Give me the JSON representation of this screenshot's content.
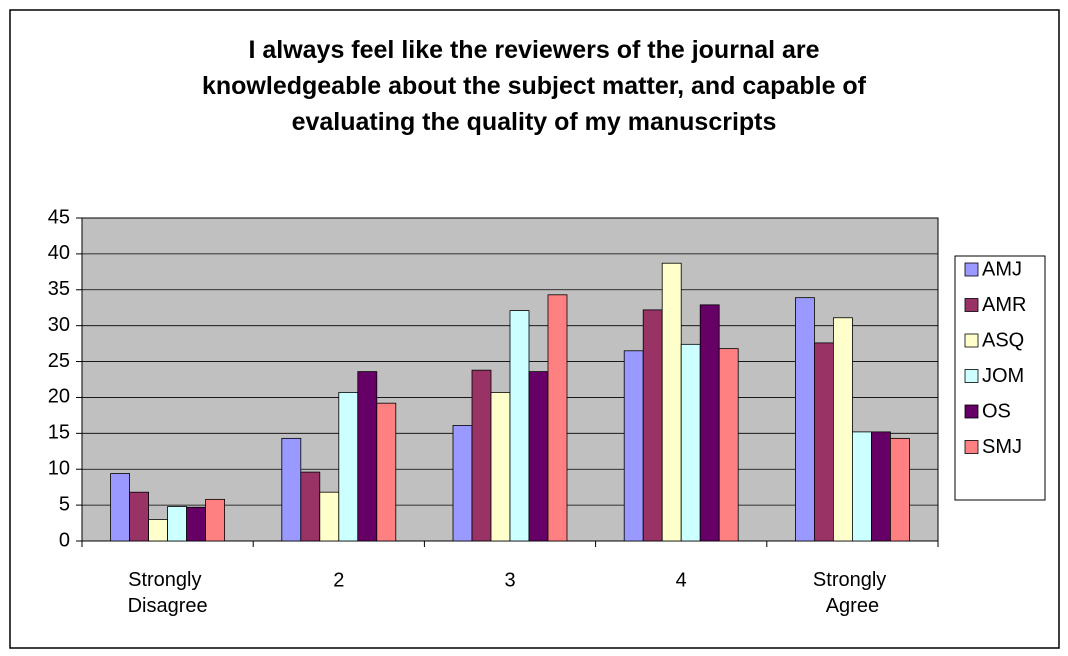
{
  "chart_data": {
    "type": "bar",
    "title": "I always feel like the reviewers of the journal are knowledgeable about the subject matter, and capable of evaluating the quality of my manuscripts",
    "categories": [
      "Strongly Disagree",
      "2",
      "3",
      "4",
      "Strongly Agree"
    ],
    "series": [
      {
        "name": "AMJ",
        "color": "#9999ff",
        "values": [
          9.4,
          14.3,
          16.1,
          26.5,
          33.9
        ]
      },
      {
        "name": "AMR",
        "color": "#993366",
        "values": [
          6.8,
          9.6,
          23.8,
          32.2,
          27.6
        ]
      },
      {
        "name": "ASQ",
        "color": "#ffffcc",
        "values": [
          3.0,
          6.8,
          20.7,
          38.7,
          31.1
        ]
      },
      {
        "name": "JOM",
        "color": "#ccffff",
        "values": [
          4.8,
          20.7,
          32.1,
          27.4,
          15.2
        ]
      },
      {
        "name": "OS",
        "color": "#660066",
        "values": [
          4.7,
          23.6,
          23.6,
          32.9,
          15.2
        ]
      },
      {
        "name": "SMJ",
        "color": "#ff8080",
        "values": [
          5.8,
          19.2,
          34.3,
          26.8,
          14.3
        ]
      }
    ],
    "ylim": [
      0,
      45
    ],
    "yticks": [
      0,
      5,
      10,
      15,
      20,
      25,
      30,
      35,
      40,
      45
    ],
    "grid": true,
    "legend": "right"
  }
}
